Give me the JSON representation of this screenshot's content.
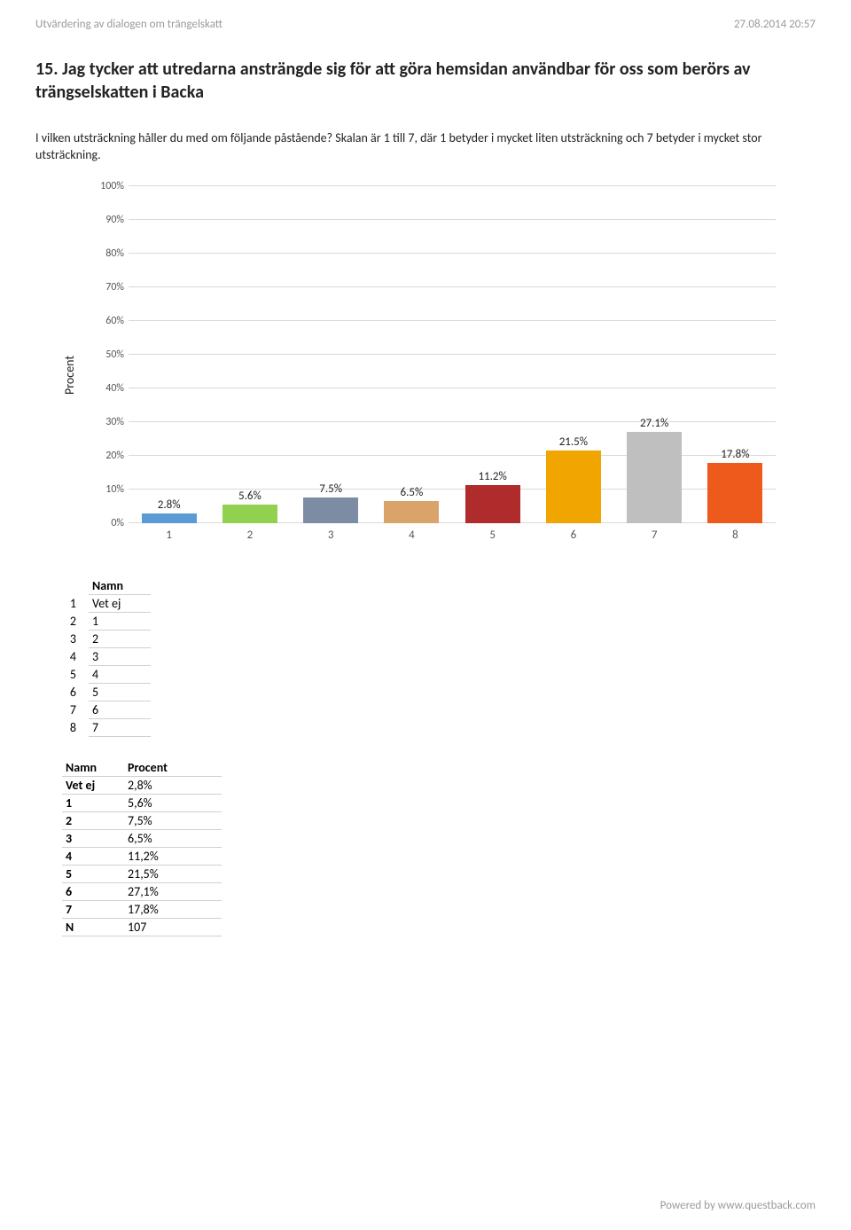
{
  "header": {
    "left": "Utvärdering av dialogen om trängelskatt",
    "right": "27.08.2014 20:57"
  },
  "question": {
    "number": "15.",
    "title": "Jag tycker att utredarna ansträngde sig för att göra hemsidan användbar för oss som berörs av trängselskatten i Backa"
  },
  "description": "I vilken utsträckning håller du med om följande påstående? Skalan är 1 till 7, där 1 betyder i mycket liten utsträckning och 7 betyder i mycket stor utsträckning.",
  "chart": {
    "type": "bar",
    "ylabel": "Procent",
    "ylim": [
      0,
      100
    ],
    "ytick_step": 10,
    "background": "#ffffff",
    "grid_color": "#d9d9d9",
    "categories": [
      "1",
      "2",
      "3",
      "4",
      "5",
      "6",
      "7",
      "8"
    ],
    "values": [
      2.8,
      5.6,
      7.5,
      6.5,
      11.2,
      21.5,
      27.1,
      17.8
    ],
    "value_labels": [
      "2.8%",
      "5.6%",
      "7.5%",
      "6.5%",
      "11.2%",
      "21.5%",
      "27.1%",
      "17.8%"
    ],
    "bar_colors": [
      "#5b9bd5",
      "#92d050",
      "#7b8ca3",
      "#d9a36a",
      "#b02b2b",
      "#f0a500",
      "#bfbfbf",
      "#ed5a1c"
    ],
    "y_ticks": [
      "0%",
      "10%",
      "20%",
      "30%",
      "40%",
      "50%",
      "60%",
      "70%",
      "80%",
      "90%",
      "100%"
    ]
  },
  "table1": {
    "header_idx": "",
    "header_name": "Namn",
    "rows": [
      {
        "idx": "1",
        "name": "Vet ej"
      },
      {
        "idx": "2",
        "name": "1"
      },
      {
        "idx": "3",
        "name": "2"
      },
      {
        "idx": "4",
        "name": "3"
      },
      {
        "idx": "5",
        "name": "4"
      },
      {
        "idx": "6",
        "name": "5"
      },
      {
        "idx": "7",
        "name": "6"
      },
      {
        "idx": "8",
        "name": "7"
      }
    ]
  },
  "table2": {
    "header_name": "Namn",
    "header_pct": "Procent",
    "rows": [
      {
        "name": "Vet ej",
        "pct": "2,8%"
      },
      {
        "name": "1",
        "pct": "5,6%"
      },
      {
        "name": "2",
        "pct": "7,5%"
      },
      {
        "name": "3",
        "pct": "6,5%"
      },
      {
        "name": "4",
        "pct": "11,2%"
      },
      {
        "name": "5",
        "pct": "21,5%"
      },
      {
        "name": "6",
        "pct": "27,1%"
      },
      {
        "name": "7",
        "pct": "17,8%"
      },
      {
        "name": "N",
        "pct": "107"
      }
    ]
  },
  "footer": "Powered by www.questback.com"
}
